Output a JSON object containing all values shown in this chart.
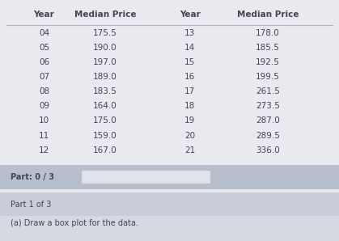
{
  "headers": [
    "Year",
    "Median Price",
    "Year",
    "Median Price"
  ],
  "col1_years": [
    "04",
    "05",
    "06",
    "07",
    "08",
    "09",
    "10",
    "11",
    "12"
  ],
  "col1_prices": [
    "175.5",
    "190.0",
    "197.0",
    "189.0",
    "183.5",
    "164.0",
    "175.0",
    "159.0",
    "167.0"
  ],
  "col2_years": [
    "13",
    "14",
    "15",
    "16",
    "17",
    "18",
    "19",
    "20",
    "21"
  ],
  "col2_prices": [
    "178.0",
    "185.5",
    "192.5",
    "199.5",
    "261.5",
    "273.5",
    "287.0",
    "289.5",
    "336.0"
  ],
  "part_label": "Part: 0 / 3",
  "part1_label": "Part 1 of 3",
  "instruction": "(a) Draw a box plot for the data.",
  "table_bg": "#e8eaef",
  "part_bg": "#b8bfcc",
  "part1_bg": "#c8cdd8",
  "bottom_bg": "#d5d9e2",
  "progress_bar_color": "#e0e3ea",
  "text_color": "#444455",
  "header_text_color": "#444455",
  "line_color": "#b0b4be",
  "c1x": 0.13,
  "c2x": 0.31,
  "c3x": 0.56,
  "c4x": 0.79,
  "fs_hdr": 7.5,
  "fs_data": 7.5
}
